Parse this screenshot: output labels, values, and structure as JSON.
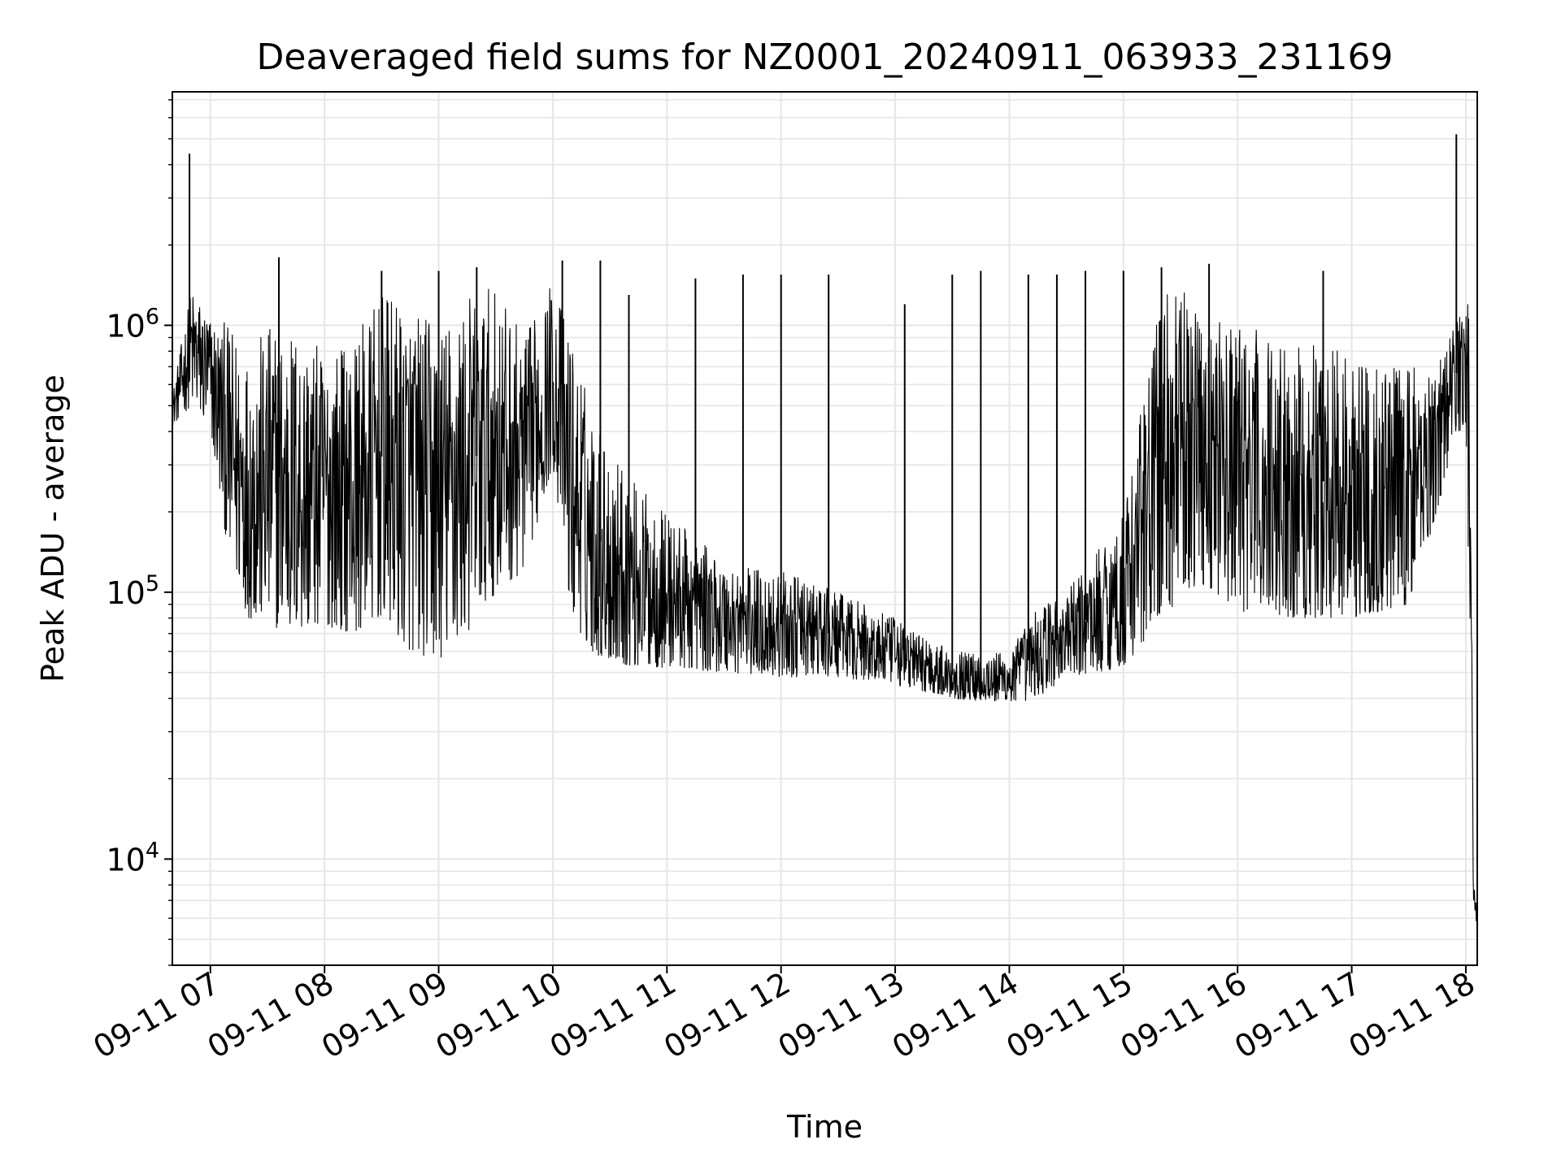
{
  "chart_data": {
    "type": "line",
    "title": "Deaveraged field sums for NZ0001_20240911_063933_231169",
    "xlabel": "Time",
    "ylabel": "Peak ADU - average",
    "yscale": "log",
    "ylim": [
      4000,
      7500000
    ],
    "xlim": [
      "2024-09-11 06:40",
      "2024-09-11 18:06"
    ],
    "grid": true,
    "grid_color": "#e6e6e6",
    "line_color": "#000000",
    "x_ticks": [
      {
        "value": "2024-09-11 07:00",
        "label": "09-11 07"
      },
      {
        "value": "2024-09-11 08:00",
        "label": "09-11 08"
      },
      {
        "value": "2024-09-11 09:00",
        "label": "09-11 09"
      },
      {
        "value": "2024-09-11 10:00",
        "label": "09-11 10"
      },
      {
        "value": "2024-09-11 11:00",
        "label": "09-11 11"
      },
      {
        "value": "2024-09-11 12:00",
        "label": "09-11 12"
      },
      {
        "value": "2024-09-11 13:00",
        "label": "09-11 13"
      },
      {
        "value": "2024-09-11 14:00",
        "label": "09-11 14"
      },
      {
        "value": "2024-09-11 15:00",
        "label": "09-11 15"
      },
      {
        "value": "2024-09-11 16:00",
        "label": "09-11 16"
      },
      {
        "value": "2024-09-11 17:00",
        "label": "09-11 17"
      },
      {
        "value": "2024-09-11 18:00",
        "label": "09-11 18"
      }
    ],
    "y_ticks": [
      {
        "value": 10000,
        "base": "10",
        "exp": "4"
      },
      {
        "value": 100000,
        "base": "10",
        "exp": "5"
      },
      {
        "value": 1000000,
        "base": "10",
        "exp": "6"
      }
    ],
    "series": [
      {
        "envelope": {
          "x": [
            "2024-09-11 06:40",
            "2024-09-11 06:50",
            "2024-09-11 07:00",
            "2024-09-11 07:10",
            "2024-09-11 07:20",
            "2024-09-11 07:30",
            "2024-09-11 07:45",
            "2024-09-11 08:00",
            "2024-09-11 08:15",
            "2024-09-11 08:30",
            "2024-09-11 08:45",
            "2024-09-11 09:00",
            "2024-09-11 09:15",
            "2024-09-11 09:30",
            "2024-09-11 09:45",
            "2024-09-11 10:00",
            "2024-09-11 10:10",
            "2024-09-11 10:20",
            "2024-09-11 10:30",
            "2024-09-11 10:45",
            "2024-09-11 11:00",
            "2024-09-11 11:30",
            "2024-09-11 12:00",
            "2024-09-11 12:30",
            "2024-09-11 13:00",
            "2024-09-11 13:30",
            "2024-09-11 14:00",
            "2024-09-11 14:15",
            "2024-09-11 14:30",
            "2024-09-11 15:00",
            "2024-09-11 15:20",
            "2024-09-11 15:40",
            "2024-09-11 16:00",
            "2024-09-11 16:30",
            "2024-09-11 17:00",
            "2024-09-11 17:30",
            "2024-09-11 17:45",
            "2024-09-11 17:55",
            "2024-09-11 18:00",
            "2024-09-11 18:02",
            "2024-09-11 18:04",
            "2024-09-11 18:06"
          ],
          "low": [
            420000,
            500000,
            400000,
            130000,
            80000,
            75000,
            70000,
            75000,
            70000,
            80000,
            60000,
            55000,
            70000,
            100000,
            120000,
            300000,
            80000,
            60000,
            55000,
            52000,
            52000,
            50000,
            48000,
            48000,
            45000,
            40000,
            38000,
            40000,
            48000,
            52000,
            80000,
            110000,
            85000,
            80000,
            80000,
            90000,
            200000,
            400000,
            400000,
            80000,
            7000,
            5500
          ],
          "high": [
            550000,
            1400000,
            1100000,
            1000000,
            800000,
            1000000,
            1000000,
            800000,
            900000,
            1300000,
            1200000,
            1000000,
            1300000,
            1400000,
            900000,
            1500000,
            900000,
            500000,
            350000,
            250000,
            200000,
            130000,
            120000,
            100000,
            80000,
            60000,
            60000,
            90000,
            100000,
            200000,
            1400000,
            1300000,
            1000000,
            900000,
            800000,
            700000,
            750000,
            1100000,
            1400000,
            1300000,
            9000,
            6000
          ]
        },
        "spikes": [
          {
            "x": "2024-09-11 06:49",
            "y": 4400000
          },
          {
            "x": "2024-09-11 07:36",
            "y": 1800000
          },
          {
            "x": "2024-09-11 08:30",
            "y": 1600000
          },
          {
            "x": "2024-09-11 09:00",
            "y": 1600000
          },
          {
            "x": "2024-09-11 09:20",
            "y": 1650000
          },
          {
            "x": "2024-09-11 10:05",
            "y": 1750000
          },
          {
            "x": "2024-09-11 10:25",
            "y": 1750000
          },
          {
            "x": "2024-09-11 10:40",
            "y": 1300000
          },
          {
            "x": "2024-09-11 11:15",
            "y": 1500000
          },
          {
            "x": "2024-09-11 11:40",
            "y": 1550000
          },
          {
            "x": "2024-09-11 12:00",
            "y": 1550000
          },
          {
            "x": "2024-09-11 12:25",
            "y": 1550000
          },
          {
            "x": "2024-09-11 13:05",
            "y": 1200000
          },
          {
            "x": "2024-09-11 13:30",
            "y": 1550000
          },
          {
            "x": "2024-09-11 13:45",
            "y": 1600000
          },
          {
            "x": "2024-09-11 14:10",
            "y": 1550000
          },
          {
            "x": "2024-09-11 14:25",
            "y": 1550000
          },
          {
            "x": "2024-09-11 14:40",
            "y": 1600000
          },
          {
            "x": "2024-09-11 15:00",
            "y": 1600000
          },
          {
            "x": "2024-09-11 15:20",
            "y": 1650000
          },
          {
            "x": "2024-09-11 15:45",
            "y": 1700000
          },
          {
            "x": "2024-09-11 16:45",
            "y": 1600000
          },
          {
            "x": "2024-09-11 17:55",
            "y": 5200000
          }
        ]
      }
    ]
  }
}
